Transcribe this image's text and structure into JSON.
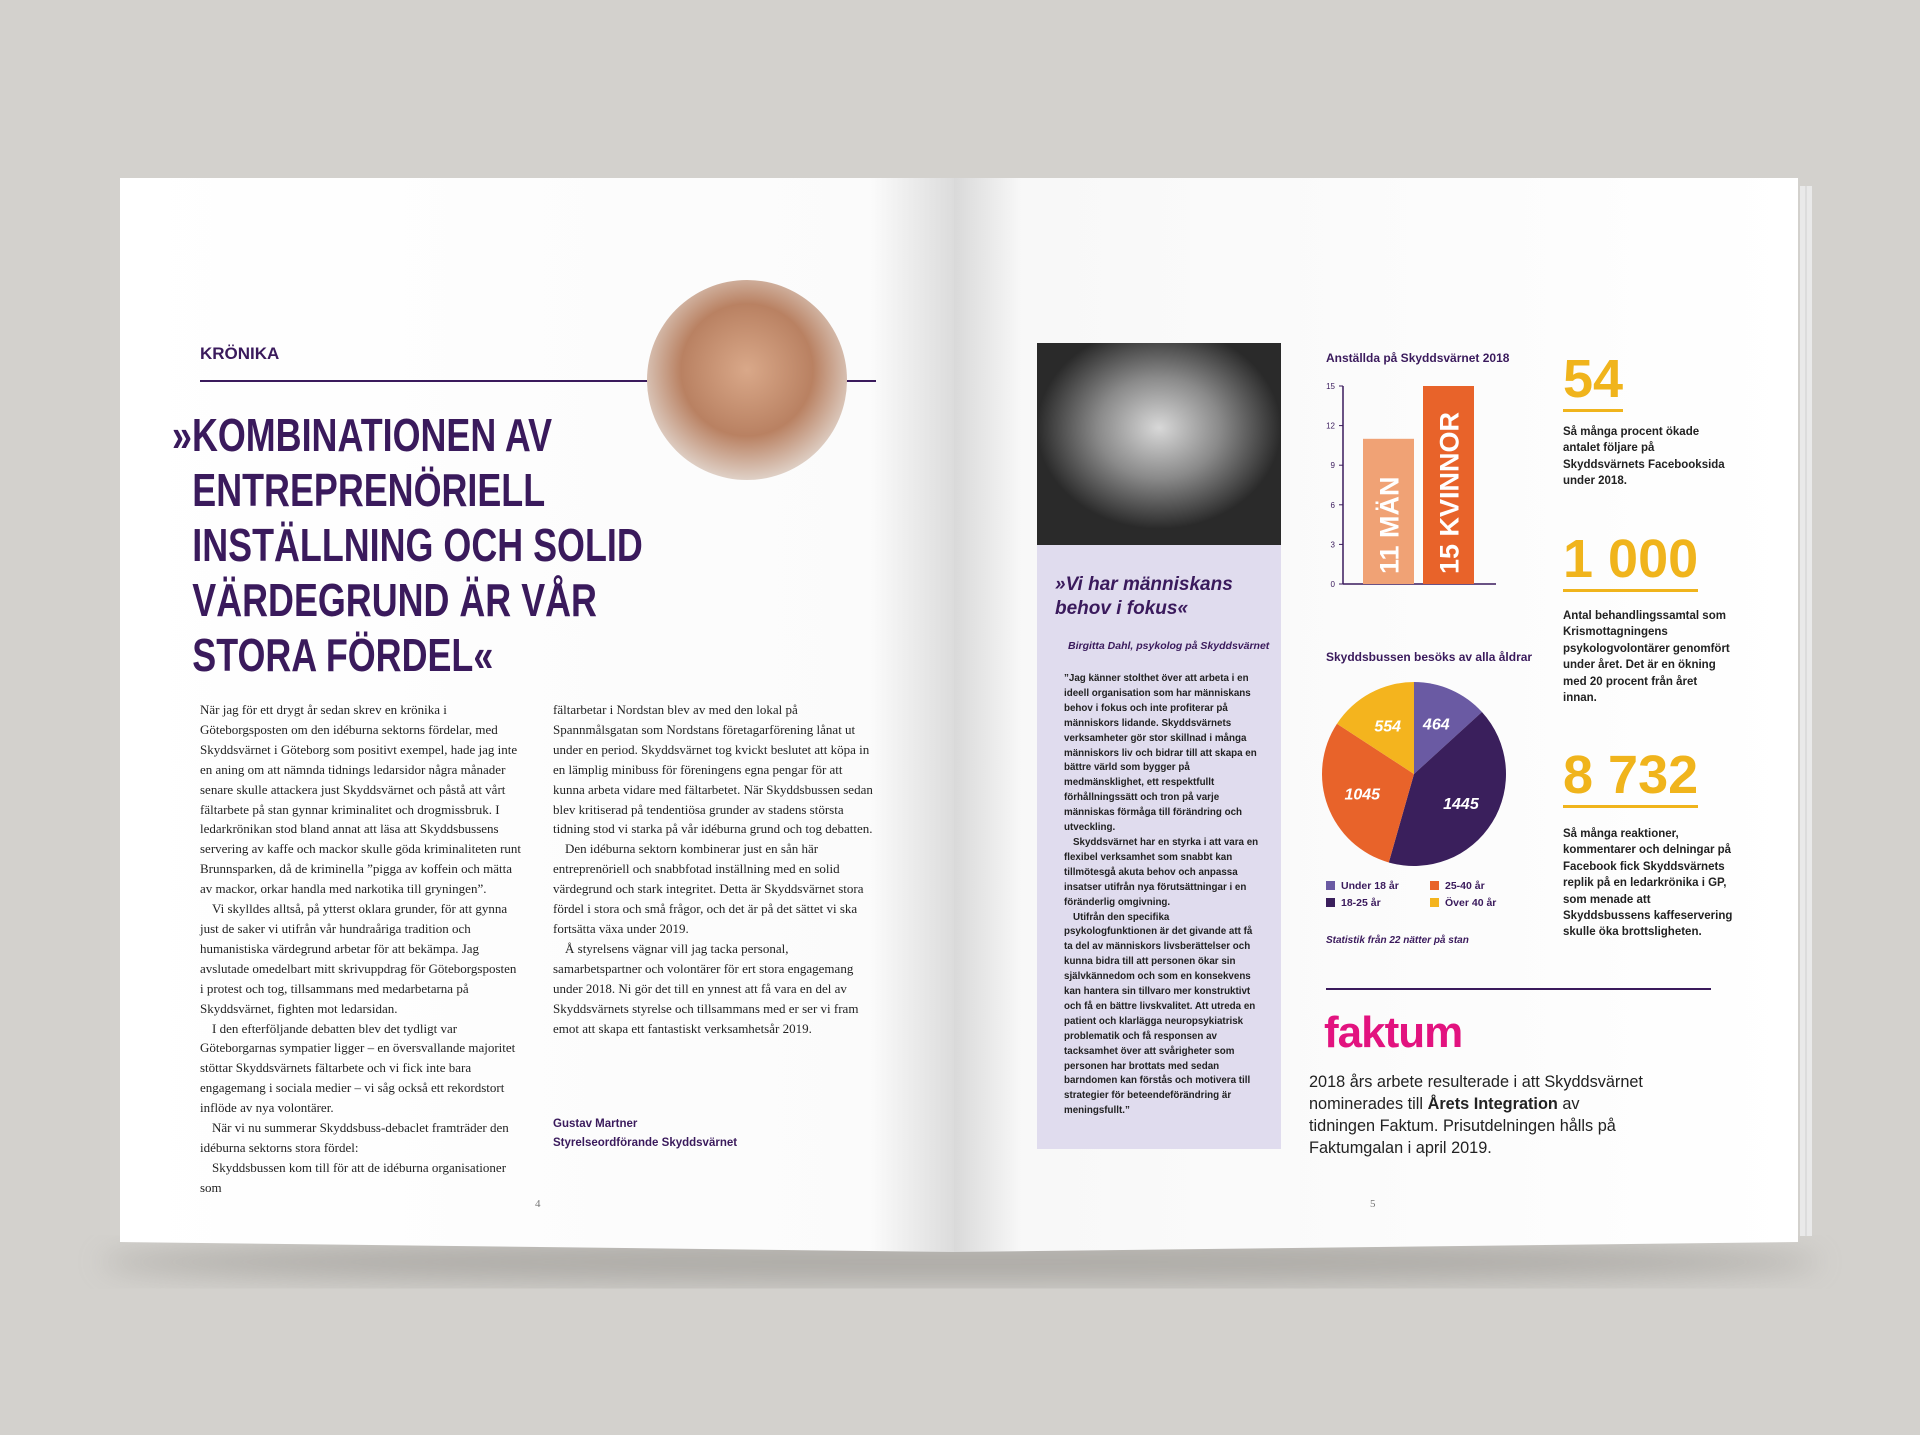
{
  "left_page": {
    "section": "KRÖNIKA",
    "headline": "»KOMBINATIONEN AV ENTREPRENÖRIELL INSTÄLLNING OCH SOLID VÄRDEGRUND ÄR VÅR STORA FÖRDEL«",
    "columns": [
      [
        "När jag för ett drygt år sedan skrev en krönika i Göteborgsposten om den idéburna sektorns fördelar, med Skyddsvärnet i Göteborg som positivt exempel, hade jag inte en aning om att nämnda tidnings ledarsidor några månader senare skulle attackera just Skyddsvärnet och påstå att vårt fältarbete på stan gynnar kriminalitet och drogmissbruk. I ledarkrönikan stod bland annat att läsa att Skyddsbussens servering av kaffe och mackor skulle göda kriminaliteten runt Brunnsparken, då de kriminella ”pigga av koffein och mätta av mackor, orkar handla med narkotika till gryningen”.",
        "Vi skylldes alltså, på ytterst oklara grunder, för att gynna just de saker vi utifrån vår hundraåriga tradition och humanistiska värdegrund arbetar för att bekämpa. Jag avslutade omedelbart mitt skrivuppdrag för Göteborgsposten i protest och tog, tillsammans med medarbetarna på Skyddsvärnet, fighten mot ledarsidan.",
        "I den efterföljande debatten blev det tydligt var Göteborgarnas sympatier ligger – en översvallande majoritet stöttar Skyddsvärnets fältarbete och vi fick inte bara engagemang i sociala medier – vi såg också ett rekordstort inflöde av nya volontärer.",
        "När vi nu summerar Skyddsbuss-debaclet framträder den idéburna sektorns stora fördel:",
        "Skyddsbussen kom till för att de idéburna organisationer som"
      ],
      [
        "fältarbetar i Nordstan blev av med den lokal på Spannmålsgatan som Nordstans företagarförening lånat ut under en period. Skyddsvärnet tog kvickt beslutet att köpa in en lämplig minibuss för föreningens egna pengar för att kunna arbeta vidare med fältarbetet. När Skyddsbussen sedan blev kritiserad på tendentiösa grunder av stadens största tidning stod vi starka på vår idéburna grund och tog debatten.",
        "Den idéburna sektorn kombinerar just en sån här entreprenöriell och snabbfotad inställning med en solid värdegrund och stark integritet. Detta är Skyddsvärnet stora fördel i stora och små frågor, och det är på det sättet vi ska fortsätta växa under 2019.",
        "Å styrelsens vägnar vill jag tacka personal, samarbetspartner och volontärer för ert stora engagemang under 2018. Ni gör det till en ynnest att få vara en del av Skyddsvärnets styrelse och tillsammans med er ser vi fram emot att skapa ett fantastiskt verksamhetsår 2019."
      ]
    ],
    "signature": {
      "name": "Gustav Martner",
      "role": "Styrelseordförande Skyddsvärnet"
    },
    "page_number": 4
  },
  "right_page": {
    "quote": {
      "title": "»Vi har människans behov i fokus«",
      "attribution": "Birgitta Dahl, psykolog på Skyddsvärnet",
      "paragraphs": [
        "”Jag känner stolthet över att arbeta i en ideell organisation som har människans behov i fokus och inte profiterar på människors lidande. Skyddsvärnets verksamheter gör stor skillnad i många människors liv och bidrar till att skapa en bättre värld som bygger på medmänsklighet, ett respektfullt förhållningssätt och tron på varje människas förmåga till förändring och utveckling.",
        "Skyddsvärnet har en styrka i att vara en flexibel verksamhet som snabbt kan tillmötesgå akuta behov och anpassa insatser utifrån nya förutsättningar i en föränderlig omgivning.",
        "Utifrån den specifika psykologfunktionen är det givande att få ta del av människors livsberättelser och kunna bidra till att personen ökar sin självkännedom och som en konsekvens kan hantera sin tillvaro mer konstruktivt och få en bättre livskvalitet. Att utreda en patient och klarlägga neuropsykiatrisk problematik och få responsen av tacksamhet över att svårigheter som personen har brottats med sedan barndomen kan förstås och motivera till strategier för beteendeförändring är meningsfullt.”"
      ]
    },
    "bar_chart": {
      "type": "bar",
      "title": "Anställda på Skyddsvärnet 2018",
      "values": [
        11,
        15
      ],
      "value_labels": [
        "11 MÄN",
        "15 KVINNOR"
      ],
      "colors": [
        "#f0a275",
        "#e8632a"
      ],
      "ylim": [
        0,
        15
      ],
      "yticks": [
        0,
        3,
        6,
        9,
        12,
        15
      ]
    },
    "pie_chart": {
      "type": "pie",
      "title": "Skyddsbussen besöks av alla åldrar",
      "series": [
        {
          "name": "Under 18 år",
          "color": "#6a5aa3",
          "value": 464
        },
        {
          "name": "18-25 år",
          "color": "#3a1f5c",
          "value": 1445
        },
        {
          "name": "25-40 år",
          "color": "#e8632a",
          "value": 1045
        },
        {
          "name": "Över 40 år",
          "color": "#f4b41e",
          "value": 554
        }
      ],
      "note": "Statistik från 22 nätter på stan"
    },
    "stats": [
      {
        "number": "54",
        "text": "Så många procent ökade antalet följare på Skyddsvärnets Facebooksida under 2018."
      },
      {
        "number": "1 000",
        "text": "Antal behandlingssamtal som Krismottagningens psykologvolontärer genomfört under året. Det är en ökning med 20 procent från året innan."
      },
      {
        "number": "8 732",
        "text": "Så många reaktioner, kommentarer och delningar på Facebook fick Skyddsvärnets replik på en ledarkrönika i GP, som menade att Skyddsbussens kaffeservering skulle öka brottsligheten."
      }
    ],
    "faktum": {
      "logo": "faktum",
      "text_before": "2018 års arbete resulterade i att Skyddsvärnet nominerades till",
      "highlight": "Årets Integration",
      "text_after": "av tidningen Faktum. Prisutdelningen hålls på Faktumgalan i april 2019."
    },
    "page_number": 5
  }
}
